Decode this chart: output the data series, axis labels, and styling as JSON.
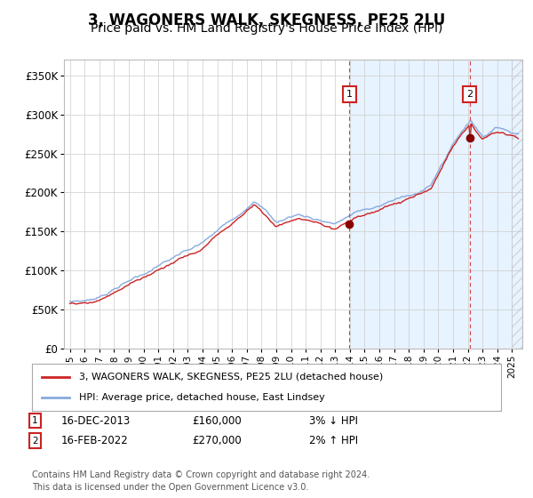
{
  "title": "3, WAGONERS WALK, SKEGNESS, PE25 2LU",
  "subtitle": "Price paid vs. HM Land Registry's House Price Index (HPI)",
  "title_fontsize": 12,
  "subtitle_fontsize": 10,
  "ylim": [
    0,
    370000
  ],
  "yticks": [
    0,
    50000,
    100000,
    150000,
    200000,
    250000,
    300000,
    350000
  ],
  "ytick_labels": [
    "£0",
    "£50K",
    "£100K",
    "£150K",
    "£200K",
    "£250K",
    "£300K",
    "£350K"
  ],
  "hpi_color": "#88aadd",
  "price_color": "#cc2222",
  "point_color": "#880000",
  "legend_line1": "3, WAGONERS WALK, SKEGNESS, PE25 2LU (detached house)",
  "legend_line2": "HPI: Average price, detached house, East Lindsey",
  "footnote1": "Contains HM Land Registry data © Crown copyright and database right 2024.",
  "footnote2": "This data is licensed under the Open Government Licence v3.0.",
  "background_color": "#ffffff",
  "grid_color": "#cccccc",
  "shade_color": "#ddeeff",
  "t1": 2013.96,
  "t2": 2022.12,
  "p1": 160000,
  "p2": 270000,
  "label1_date": "16-DEC-2013",
  "label2_date": "16-FEB-2022",
  "label1_pct": "3% ↓ HPI",
  "label2_pct": "2% ↑ HPI",
  "label1_price": "£160,000",
  "label2_price": "£270,000"
}
